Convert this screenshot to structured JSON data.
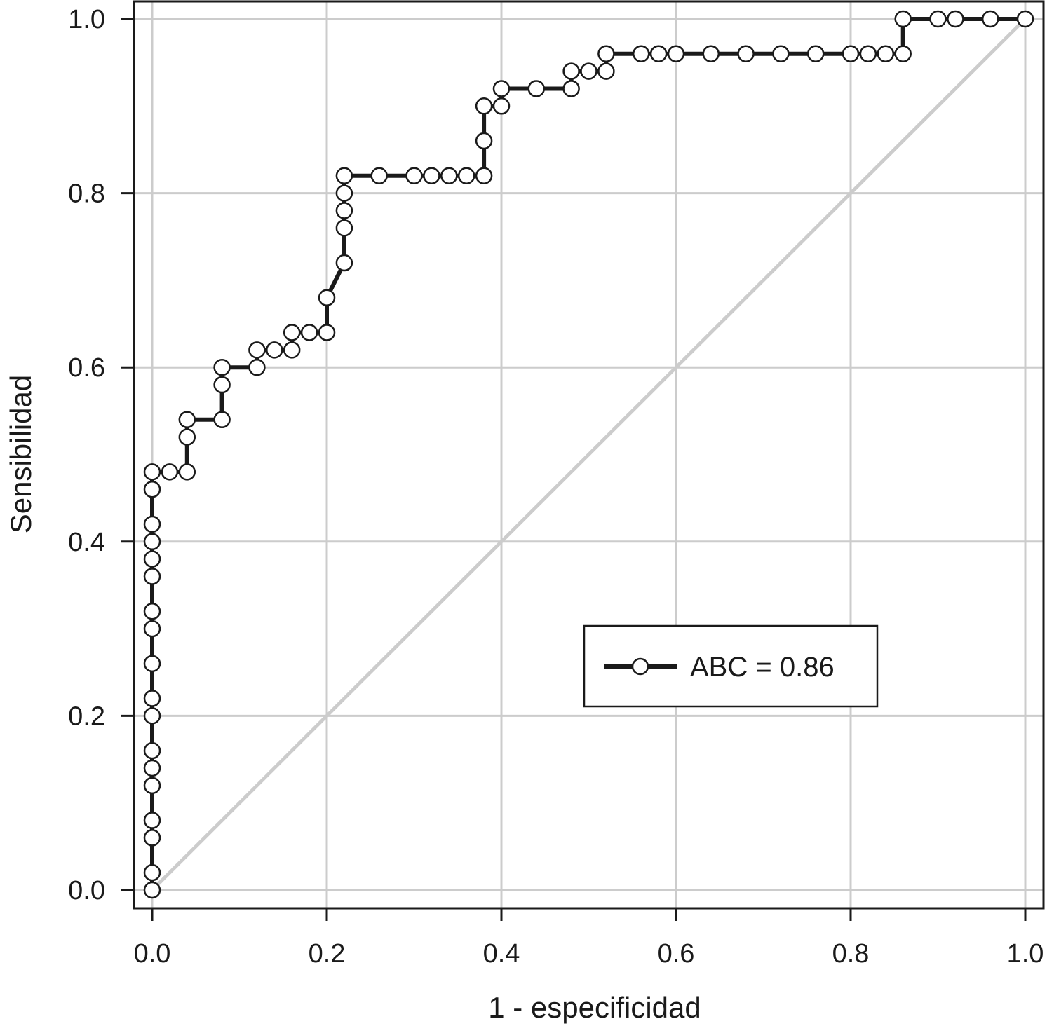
{
  "chart_data": {
    "type": "line",
    "xlabel": "1 - especificidad",
    "ylabel": "Sensibilidad",
    "xlim": [
      0.0,
      1.0
    ],
    "ylim": [
      0.0,
      1.0
    ],
    "x_ticks": [
      "0.0",
      "0.2",
      "0.4",
      "0.6",
      "0.8",
      "1.0"
    ],
    "y_ticks": [
      "0.0",
      "0.2",
      "0.4",
      "0.6",
      "0.8",
      "1.0"
    ],
    "grid": true,
    "legend": {
      "position": "lower-right",
      "label": "ABC = 0.86"
    },
    "series": [
      {
        "name": "ABC = 0.86",
        "style": "step line with open circle markers",
        "color": "#1a1a1a",
        "points": [
          [
            0.0,
            0.0
          ],
          [
            0.0,
            0.02
          ],
          [
            0.0,
            0.06
          ],
          [
            0.0,
            0.08
          ],
          [
            0.0,
            0.12
          ],
          [
            0.0,
            0.14
          ],
          [
            0.0,
            0.16
          ],
          [
            0.0,
            0.2
          ],
          [
            0.0,
            0.22
          ],
          [
            0.0,
            0.26
          ],
          [
            0.0,
            0.3
          ],
          [
            0.0,
            0.32
          ],
          [
            0.0,
            0.36
          ],
          [
            0.0,
            0.38
          ],
          [
            0.0,
            0.4
          ],
          [
            0.0,
            0.42
          ],
          [
            0.0,
            0.46
          ],
          [
            0.0,
            0.48
          ],
          [
            0.02,
            0.48
          ],
          [
            0.04,
            0.48
          ],
          [
            0.04,
            0.52
          ],
          [
            0.04,
            0.54
          ],
          [
            0.08,
            0.54
          ],
          [
            0.08,
            0.58
          ],
          [
            0.08,
            0.6
          ],
          [
            0.12,
            0.6
          ],
          [
            0.12,
            0.62
          ],
          [
            0.14,
            0.62
          ],
          [
            0.16,
            0.62
          ],
          [
            0.16,
            0.64
          ],
          [
            0.18,
            0.64
          ],
          [
            0.2,
            0.64
          ],
          [
            0.2,
            0.68
          ],
          [
            0.22,
            0.72
          ],
          [
            0.22,
            0.76
          ],
          [
            0.22,
            0.78
          ],
          [
            0.22,
            0.8
          ],
          [
            0.22,
            0.82
          ],
          [
            0.26,
            0.82
          ],
          [
            0.3,
            0.82
          ],
          [
            0.32,
            0.82
          ],
          [
            0.34,
            0.82
          ],
          [
            0.36,
            0.82
          ],
          [
            0.38,
            0.82
          ],
          [
            0.38,
            0.86
          ],
          [
            0.38,
            0.9
          ],
          [
            0.4,
            0.9
          ],
          [
            0.4,
            0.92
          ],
          [
            0.44,
            0.92
          ],
          [
            0.48,
            0.92
          ],
          [
            0.48,
            0.94
          ],
          [
            0.5,
            0.94
          ],
          [
            0.52,
            0.94
          ],
          [
            0.52,
            0.96
          ],
          [
            0.56,
            0.96
          ],
          [
            0.58,
            0.96
          ],
          [
            0.6,
            0.96
          ],
          [
            0.64,
            0.96
          ],
          [
            0.68,
            0.96
          ],
          [
            0.72,
            0.96
          ],
          [
            0.76,
            0.96
          ],
          [
            0.8,
            0.96
          ],
          [
            0.82,
            0.96
          ],
          [
            0.84,
            0.96
          ],
          [
            0.86,
            0.96
          ],
          [
            0.86,
            1.0
          ],
          [
            0.9,
            1.0
          ],
          [
            0.92,
            1.0
          ],
          [
            0.96,
            1.0
          ],
          [
            1.0,
            1.0
          ]
        ]
      },
      {
        "name": "",
        "style": "diagonal reference line",
        "color": "#cccccc",
        "points": [
          [
            0.0,
            0.0
          ],
          [
            1.0,
            1.0
          ]
        ]
      }
    ]
  }
}
